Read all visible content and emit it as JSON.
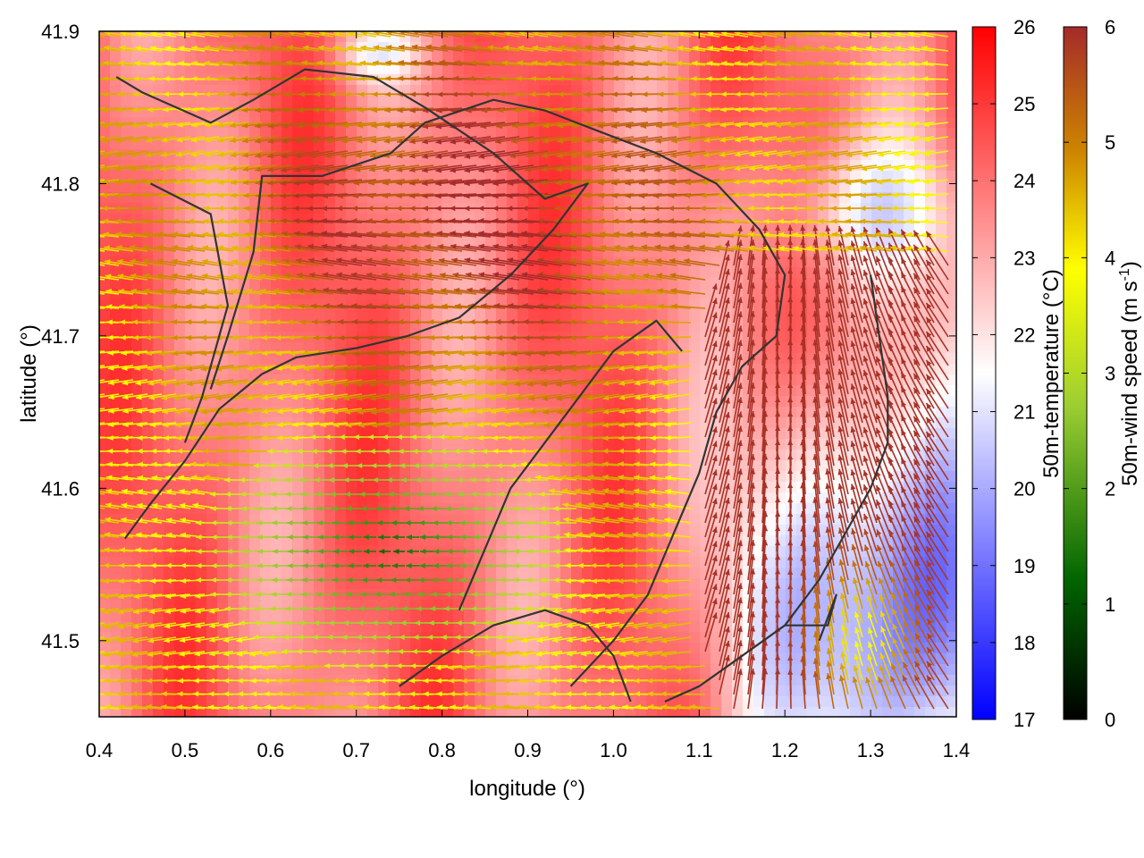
{
  "chart_data": {
    "type": "heatmap",
    "xlabel": "longitude (°)",
    "ylabel": "latitude (°)",
    "xlim": [
      0.4,
      1.4
    ],
    "ylim": [
      41.45,
      41.9
    ],
    "xticks": [
      {
        "value": 0.4,
        "label": "0.4"
      },
      {
        "value": 0.5,
        "label": "0.5"
      },
      {
        "value": 0.6,
        "label": "0.6"
      },
      {
        "value": 0.7,
        "label": "0.7"
      },
      {
        "value": 0.8,
        "label": "0.8"
      },
      {
        "value": 0.9,
        "label": "0.9"
      },
      {
        "value": 1.0,
        "label": "1.0"
      },
      {
        "value": 1.1,
        "label": "1.1"
      },
      {
        "value": 1.2,
        "label": "1.2"
      },
      {
        "value": 1.3,
        "label": "1.3"
      },
      {
        "value": 1.4,
        "label": "1.4"
      }
    ],
    "yticks": [
      {
        "value": 41.5,
        "label": "41.5"
      },
      {
        "value": 41.6,
        "label": "41.6"
      },
      {
        "value": 41.7,
        "label": "41.7"
      },
      {
        "value": 41.8,
        "label": "41.8"
      },
      {
        "value": 41.9,
        "label": "41.9"
      }
    ],
    "grid": false,
    "temperature_colorbar": {
      "label": "50m-temperature (°C)",
      "range": [
        17,
        26
      ],
      "ticks": [
        {
          "value": 17,
          "label": "17"
        },
        {
          "value": 18,
          "label": "18"
        },
        {
          "value": 19,
          "label": "19"
        },
        {
          "value": 20,
          "label": "20"
        },
        {
          "value": 21,
          "label": "21"
        },
        {
          "value": 22,
          "label": "22"
        },
        {
          "value": 23,
          "label": "23"
        },
        {
          "value": 24,
          "label": "24"
        },
        {
          "value": 25,
          "label": "25"
        },
        {
          "value": 26,
          "label": "26"
        }
      ],
      "palette": [
        "#0000ff",
        "#ffffff",
        "#ff0000"
      ]
    },
    "windspeed_colorbar": {
      "label_main": "50m-wind speed (m s",
      "label_sup": "-1",
      "label_end": ")",
      "range": [
        0,
        6
      ],
      "ticks": [
        {
          "value": 0,
          "label": "0"
        },
        {
          "value": 1,
          "label": "1"
        },
        {
          "value": 2,
          "label": "2"
        },
        {
          "value": 3,
          "label": "3"
        },
        {
          "value": 4,
          "label": "4"
        },
        {
          "value": 5,
          "label": "5"
        },
        {
          "value": 6,
          "label": "6"
        }
      ],
      "palette": [
        "#000000",
        "#006400",
        "#9acd32",
        "#ffff00",
        "#cd8500",
        "#a52a2a"
      ]
    },
    "contour_color": "#333333",
    "contours": [
      [
        [
          0.43,
          41.567
        ],
        [
          0.46,
          41.59
        ],
        [
          0.5,
          41.618
        ],
        [
          0.54,
          41.652
        ],
        [
          0.59,
          41.675
        ],
        [
          0.63,
          41.686
        ],
        [
          0.7,
          41.692
        ],
        [
          0.76,
          41.7
        ],
        [
          0.82,
          41.712
        ],
        [
          0.88,
          41.74
        ],
        [
          0.93,
          41.77
        ],
        [
          0.97,
          41.8
        ],
        [
          0.92,
          41.79
        ],
        [
          0.86,
          41.82
        ],
        [
          0.78,
          41.85
        ],
        [
          0.72,
          41.87
        ],
        [
          0.64,
          41.875
        ],
        [
          0.58,
          41.855
        ],
        [
          0.53,
          41.84
        ],
        [
          0.45,
          41.86
        ],
        [
          0.42,
          41.87
        ]
      ],
      [
        [
          0.53,
          41.665
        ],
        [
          0.55,
          41.7
        ],
        [
          0.58,
          41.755
        ],
        [
          0.59,
          41.805
        ],
        [
          0.66,
          41.805
        ],
        [
          0.74,
          41.82
        ],
        [
          0.78,
          41.84
        ],
        [
          0.86,
          41.855
        ],
        [
          0.92,
          41.848
        ],
        [
          0.98,
          41.835
        ],
        [
          1.05,
          41.82
        ],
        [
          1.12,
          41.8
        ],
        [
          1.17,
          41.77
        ],
        [
          1.2,
          41.74
        ],
        [
          1.19,
          41.7
        ],
        [
          1.15,
          41.68
        ],
        [
          1.12,
          41.65
        ],
        [
          1.1,
          41.61
        ],
        [
          1.07,
          41.57
        ],
        [
          1.04,
          41.53
        ],
        [
          1.0,
          41.5
        ],
        [
          0.95,
          41.47
        ]
      ],
      [
        [
          0.75,
          41.47
        ],
        [
          0.8,
          41.49
        ],
        [
          0.86,
          41.51
        ],
        [
          0.92,
          41.52
        ],
        [
          0.97,
          41.51
        ],
        [
          1.0,
          41.49
        ],
        [
          1.02,
          41.46
        ]
      ],
      [
        [
          0.46,
          41.8
        ],
        [
          0.53,
          41.78
        ],
        [
          0.55,
          41.72
        ],
        [
          0.52,
          41.66
        ],
        [
          0.5,
          41.63
        ]
      ],
      [
        [
          0.82,
          41.52
        ],
        [
          0.85,
          41.56
        ],
        [
          0.88,
          41.6
        ],
        [
          0.92,
          41.63
        ],
        [
          0.96,
          41.66
        ],
        [
          1.0,
          41.69
        ],
        [
          1.05,
          41.71
        ],
        [
          1.08,
          41.69
        ]
      ],
      [
        [
          1.3,
          41.74
        ],
        [
          1.31,
          41.7
        ],
        [
          1.32,
          41.66
        ],
        [
          1.32,
          41.63
        ],
        [
          1.3,
          41.6
        ],
        [
          1.27,
          41.57
        ],
        [
          1.24,
          41.54
        ],
        [
          1.2,
          41.51
        ],
        [
          1.15,
          41.49
        ],
        [
          1.1,
          41.47
        ],
        [
          1.06,
          41.46
        ]
      ],
      [
        [
          1.2,
          41.51
        ],
        [
          1.25,
          41.51
        ],
        [
          1.26,
          41.53
        ],
        [
          1.24,
          41.5
        ]
      ]
    ]
  }
}
